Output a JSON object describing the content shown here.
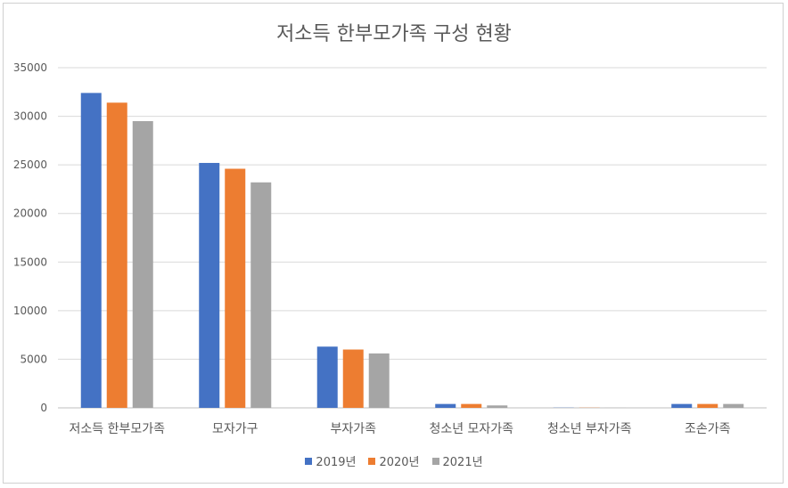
{
  "chart_data": {
    "type": "bar",
    "title": "저소득 한부모가족 구성 현황",
    "xlabel": "",
    "ylabel": "",
    "categories": [
      "저소득 한부모가족",
      "모자가구",
      "부자가족",
      "청소년 모자가족",
      "청소년 부자가족",
      "조손가족"
    ],
    "series": [
      {
        "name": "2019년",
        "color": "#4472C4",
        "values": [
          32400,
          25200,
          6300,
          400,
          20,
          400
        ]
      },
      {
        "name": "2020년",
        "color": "#ED7D31",
        "values": [
          31400,
          24600,
          6000,
          400,
          20,
          400
        ]
      },
      {
        "name": "2021년",
        "color": "#A5A5A5",
        "values": [
          29500,
          23200,
          5600,
          250,
          10,
          400
        ]
      }
    ],
    "ylim": [
      0,
      35000
    ],
    "yticks": [
      0,
      5000,
      10000,
      15000,
      20000,
      25000,
      30000,
      35000
    ],
    "grid": true,
    "legend_position": "bottom"
  }
}
